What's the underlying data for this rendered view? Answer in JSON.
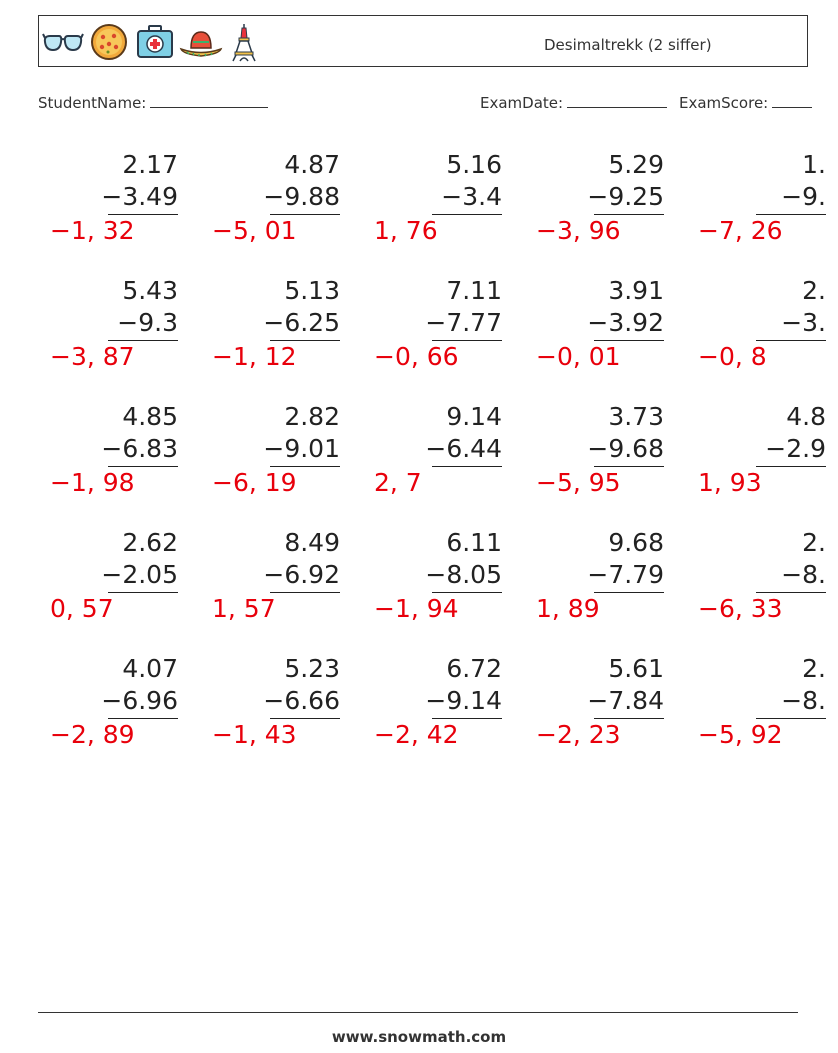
{
  "header": {
    "title": "Desimaltrekk (2 siffer)",
    "icons": [
      "sunglasses-icon",
      "pizza-icon",
      "first-aid-kit-icon",
      "sombrero-icon",
      "eiffel-tower-icon"
    ]
  },
  "meta": {
    "student_label": "StudentName:",
    "date_label": "ExamDate:",
    "score_label": "ExamScore:"
  },
  "problems": [
    {
      "a": "2.17",
      "b": "−3.49",
      "answer": "−1, 32"
    },
    {
      "a": "4.87",
      "b": "−9.88",
      "answer": "−5, 01"
    },
    {
      "a": "5.16",
      "b": "−3.4",
      "answer": "1, 76"
    },
    {
      "a": "5.29",
      "b": "−9.25",
      "answer": "−3, 96"
    },
    {
      "a": "1.",
      "b": "−9.",
      "answer": "−7, 26"
    },
    {
      "a": "5.43",
      "b": "−9.3",
      "answer": "−3, 87"
    },
    {
      "a": "5.13",
      "b": "−6.25",
      "answer": "−1, 12"
    },
    {
      "a": "7.11",
      "b": "−7.77",
      "answer": "−0, 66"
    },
    {
      "a": "3.91",
      "b": "−3.92",
      "answer": "−0, 01"
    },
    {
      "a": "2.",
      "b": "−3.",
      "answer": "−0, 8"
    },
    {
      "a": "4.85",
      "b": "−6.83",
      "answer": "−1, 98"
    },
    {
      "a": "2.82",
      "b": "−9.01",
      "answer": "−6, 19"
    },
    {
      "a": "9.14",
      "b": "−6.44",
      "answer": "2, 7"
    },
    {
      "a": "3.73",
      "b": "−9.68",
      "answer": "−5, 95"
    },
    {
      "a": "4.8",
      "b": "−2.9",
      "answer": "1, 93"
    },
    {
      "a": "2.62",
      "b": "−2.05",
      "answer": "0, 57"
    },
    {
      "a": "8.49",
      "b": "−6.92",
      "answer": "1, 57"
    },
    {
      "a": "6.11",
      "b": "−8.05",
      "answer": "−1, 94"
    },
    {
      "a": "9.68",
      "b": "−7.79",
      "answer": "1, 89"
    },
    {
      "a": "2.",
      "b": "−8.",
      "answer": "−6, 33"
    },
    {
      "a": "4.07",
      "b": "−6.96",
      "answer": "−2, 89"
    },
    {
      "a": "5.23",
      "b": "−6.66",
      "answer": "−1, 43"
    },
    {
      "a": "6.72",
      "b": "−9.14",
      "answer": "−2, 42"
    },
    {
      "a": "5.61",
      "b": "−7.84",
      "answer": "−2, 23"
    },
    {
      "a": "2.",
      "b": "−8.",
      "answer": "−5, 92"
    }
  ],
  "footer": {
    "site": "www.snowmath.com"
  }
}
